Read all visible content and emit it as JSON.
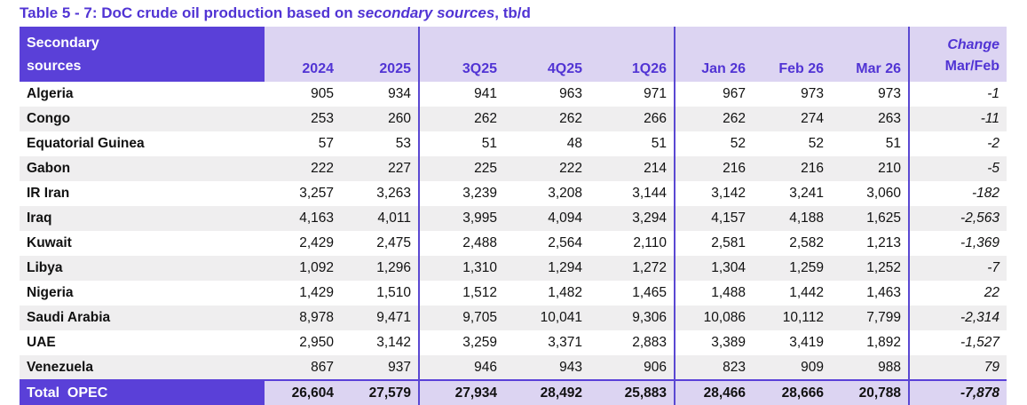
{
  "title": {
    "part1": "Table 5 - 7: DoC crude oil production based on ",
    "part2": "secondary sources",
    "part3": ", tb/d"
  },
  "table": {
    "header": {
      "row_label_line1": "Secondary",
      "row_label_line2": "sources",
      "cols": [
        "2024",
        "2025",
        "3Q25",
        "4Q25",
        "1Q26",
        "Jan 26",
        "Feb 26",
        "Mar 26"
      ],
      "change_line1": "Change",
      "change_line2": "Mar/Feb"
    },
    "rows": [
      {
        "country": "Algeria",
        "values": [
          "905",
          "934",
          "941",
          "963",
          "971",
          "967",
          "973",
          "973"
        ],
        "change": "-1"
      },
      {
        "country": "Congo",
        "values": [
          "253",
          "260",
          "262",
          "262",
          "266",
          "262",
          "274",
          "263"
        ],
        "change": "-11"
      },
      {
        "country": "Equatorial Guinea",
        "values": [
          "57",
          "53",
          "51",
          "48",
          "51",
          "52",
          "52",
          "51"
        ],
        "change": "-2"
      },
      {
        "country": "Gabon",
        "values": [
          "222",
          "227",
          "225",
          "222",
          "214",
          "216",
          "216",
          "210"
        ],
        "change": "-5"
      },
      {
        "country": "IR Iran",
        "values": [
          "3,257",
          "3,263",
          "3,239",
          "3,208",
          "3,144",
          "3,142",
          "3,241",
          "3,060"
        ],
        "change": "-182"
      },
      {
        "country": "Iraq",
        "values": [
          "4,163",
          "4,011",
          "3,995",
          "4,094",
          "3,294",
          "4,157",
          "4,188",
          "1,625"
        ],
        "change": "-2,563"
      },
      {
        "country": "Kuwait",
        "values": [
          "2,429",
          "2,475",
          "2,488",
          "2,564",
          "2,110",
          "2,581",
          "2,582",
          "1,213"
        ],
        "change": "-1,369"
      },
      {
        "country": "Libya",
        "values": [
          "1,092",
          "1,296",
          "1,310",
          "1,294",
          "1,272",
          "1,304",
          "1,259",
          "1,252"
        ],
        "change": "-7"
      },
      {
        "country": "Nigeria",
        "values": [
          "1,429",
          "1,510",
          "1,512",
          "1,482",
          "1,465",
          "1,488",
          "1,442",
          "1,463"
        ],
        "change": "22"
      },
      {
        "country": "Saudi Arabia",
        "values": [
          "8,978",
          "9,471",
          "9,705",
          "10,041",
          "9,306",
          "10,086",
          "10,112",
          "7,799"
        ],
        "change": "-2,314"
      },
      {
        "country": "UAE",
        "values": [
          "2,950",
          "3,142",
          "3,259",
          "3,371",
          "2,883",
          "3,389",
          "3,419",
          "1,892"
        ],
        "change": "-1,527"
      },
      {
        "country": "Venezuela",
        "values": [
          "867",
          "937",
          "946",
          "943",
          "906",
          "823",
          "909",
          "988"
        ],
        "change": "79"
      }
    ],
    "total": {
      "label": "Total  OPEC",
      "values": [
        "26,604",
        "27,579",
        "27,934",
        "28,492",
        "25,883",
        "28,466",
        "28,666",
        "20,788"
      ],
      "change": "-7,878"
    }
  },
  "colors": {
    "header_purple": "#5a40d8",
    "lavender": "#dcd4f2",
    "header_text": "#5134d4",
    "row_stripe": "#efeeef",
    "divider": "#5a48d2"
  }
}
